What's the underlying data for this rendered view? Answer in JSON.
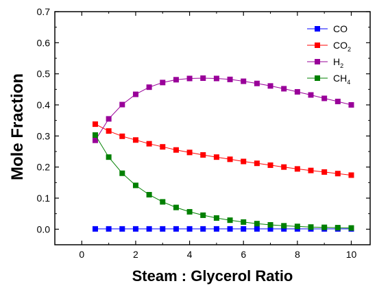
{
  "chart_data": {
    "type": "line",
    "xlabel": "Steam : Glycerol Ratio",
    "ylabel": "Mole Fraction",
    "xlim": [
      -1,
      10.7
    ],
    "ylim": [
      -0.05,
      0.7
    ],
    "xticks": [
      0,
      2,
      4,
      6,
      8,
      10
    ],
    "yticks": [
      0.0,
      0.1,
      0.2,
      0.3,
      0.4,
      0.5,
      0.6,
      0.7
    ],
    "xtick_labels": [
      "0",
      "2",
      "4",
      "6",
      "8",
      "10"
    ],
    "ytick_labels": [
      "0.0",
      "0.1",
      "0.2",
      "0.3",
      "0.4",
      "0.5",
      "0.6",
      "0.7"
    ],
    "grid": false,
    "legend_position": "top-right",
    "x": [
      0.5,
      1,
      1.5,
      2,
      2.5,
      3,
      3.5,
      4,
      4.5,
      5,
      5.5,
      6,
      6.5,
      7,
      7.5,
      8,
      8.5,
      9,
      9.5,
      10
    ],
    "series": [
      {
        "name": "CO",
        "legend_base": "CO",
        "legend_sub": "",
        "color": "#0000ff",
        "values": [
          0.001,
          0.001,
          0.001,
          0.001,
          0.001,
          0.001,
          0.001,
          0.001,
          0.001,
          0.001,
          0.001,
          0.001,
          0.001,
          0.001,
          0.001,
          0.001,
          0.001,
          0.001,
          0.001,
          0.001
        ]
      },
      {
        "name": "CO2",
        "legend_base": "CO",
        "legend_sub": "2",
        "color": "#ff0000",
        "values": [
          0.338,
          0.316,
          0.299,
          0.287,
          0.275,
          0.265,
          0.255,
          0.247,
          0.239,
          0.232,
          0.225,
          0.218,
          0.212,
          0.206,
          0.2,
          0.194,
          0.189,
          0.184,
          0.179,
          0.174
        ]
      },
      {
        "name": "H2",
        "legend_base": "H",
        "legend_sub": "2",
        "color": "#990099",
        "values": [
          0.286,
          0.355,
          0.401,
          0.434,
          0.457,
          0.472,
          0.481,
          0.485,
          0.486,
          0.485,
          0.482,
          0.476,
          0.469,
          0.461,
          0.452,
          0.442,
          0.432,
          0.421,
          0.411,
          0.4
        ]
      },
      {
        "name": "CH4",
        "legend_base": "CH",
        "legend_sub": "4",
        "color": "#008000",
        "values": [
          0.303,
          0.232,
          0.18,
          0.141,
          0.111,
          0.088,
          0.07,
          0.056,
          0.045,
          0.036,
          0.029,
          0.023,
          0.018,
          0.014,
          0.011,
          0.009,
          0.007,
          0.006,
          0.005,
          0.004
        ]
      }
    ]
  }
}
